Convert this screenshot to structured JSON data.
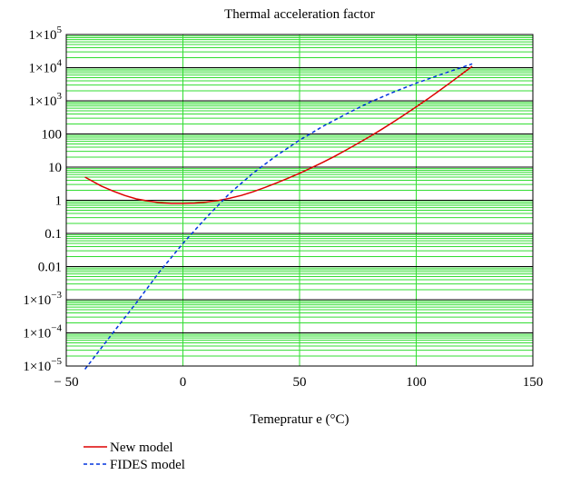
{
  "chart_data": {
    "type": "line",
    "title": "Thermal acceleration factor",
    "xlabel": "Temepratur e (°C)",
    "ylabel": "",
    "y_scale": "log",
    "xlim": [
      -50,
      150
    ],
    "ylim": [
      1e-05,
      100000
    ],
    "grid": true,
    "grid_color": "#33dd33",
    "x_ticks": [
      {
        "value": -50,
        "label": "− 50"
      },
      {
        "value": 0,
        "label": "0"
      },
      {
        "value": 50,
        "label": "50"
      },
      {
        "value": 100,
        "label": "100"
      },
      {
        "value": 150,
        "label": "150"
      }
    ],
    "y_ticks": [
      {
        "value": 100000,
        "base": "1×10",
        "exp": "5"
      },
      {
        "value": 10000,
        "base": "1×10",
        "exp": "4"
      },
      {
        "value": 1000,
        "base": "1×10",
        "exp": "3"
      },
      {
        "value": 100,
        "base": "100",
        "exp": ""
      },
      {
        "value": 10,
        "base": "10",
        "exp": ""
      },
      {
        "value": 1,
        "base": "1",
        "exp": ""
      },
      {
        "value": 0.1,
        "base": "0.1",
        "exp": ""
      },
      {
        "value": 0.01,
        "base": "0.01",
        "exp": ""
      },
      {
        "value": 0.001,
        "base": "1×10",
        "exp": "−3"
      },
      {
        "value": 0.0001,
        "base": "1×10",
        "exp": "−4"
      },
      {
        "value": 1e-05,
        "base": "1×10",
        "exp": "−5"
      }
    ],
    "legend_position": "bottom-left",
    "series": [
      {
        "name": "New model",
        "color": "#dd0000",
        "style": "solid",
        "x": [
          -42,
          -35,
          -30,
          -25,
          -20,
          -15,
          -10,
          -5,
          0,
          5,
          10,
          15,
          20,
          25,
          30,
          35,
          40,
          45,
          50,
          55,
          60,
          65,
          70,
          75,
          80,
          85,
          90,
          95,
          100,
          105,
          110,
          115,
          120,
          124
        ],
        "y": [
          5.0,
          2.7,
          1.9,
          1.4,
          1.1,
          0.95,
          0.85,
          0.8,
          0.8,
          0.82,
          0.88,
          0.98,
          1.15,
          1.4,
          1.8,
          2.4,
          3.3,
          4.6,
          6.5,
          9.5,
          14,
          21,
          33,
          52,
          83,
          135,
          225,
          380,
          660,
          1150,
          2050,
          3700,
          6800,
          11000
        ]
      },
      {
        "name": "FIDES model",
        "color": "#0033dd",
        "style": "dashed",
        "x": [
          -42,
          -30,
          -20,
          -10,
          0,
          10,
          20,
          30,
          40,
          50,
          60,
          70,
          80,
          90,
          100,
          110,
          124
        ],
        "y": [
          8e-06,
          0.0001,
          0.0008,
          0.007,
          0.05,
          0.3,
          1.6,
          6.5,
          22,
          65,
          170,
          400,
          900,
          1800,
          3400,
          6000,
          13000
        ]
      }
    ]
  }
}
